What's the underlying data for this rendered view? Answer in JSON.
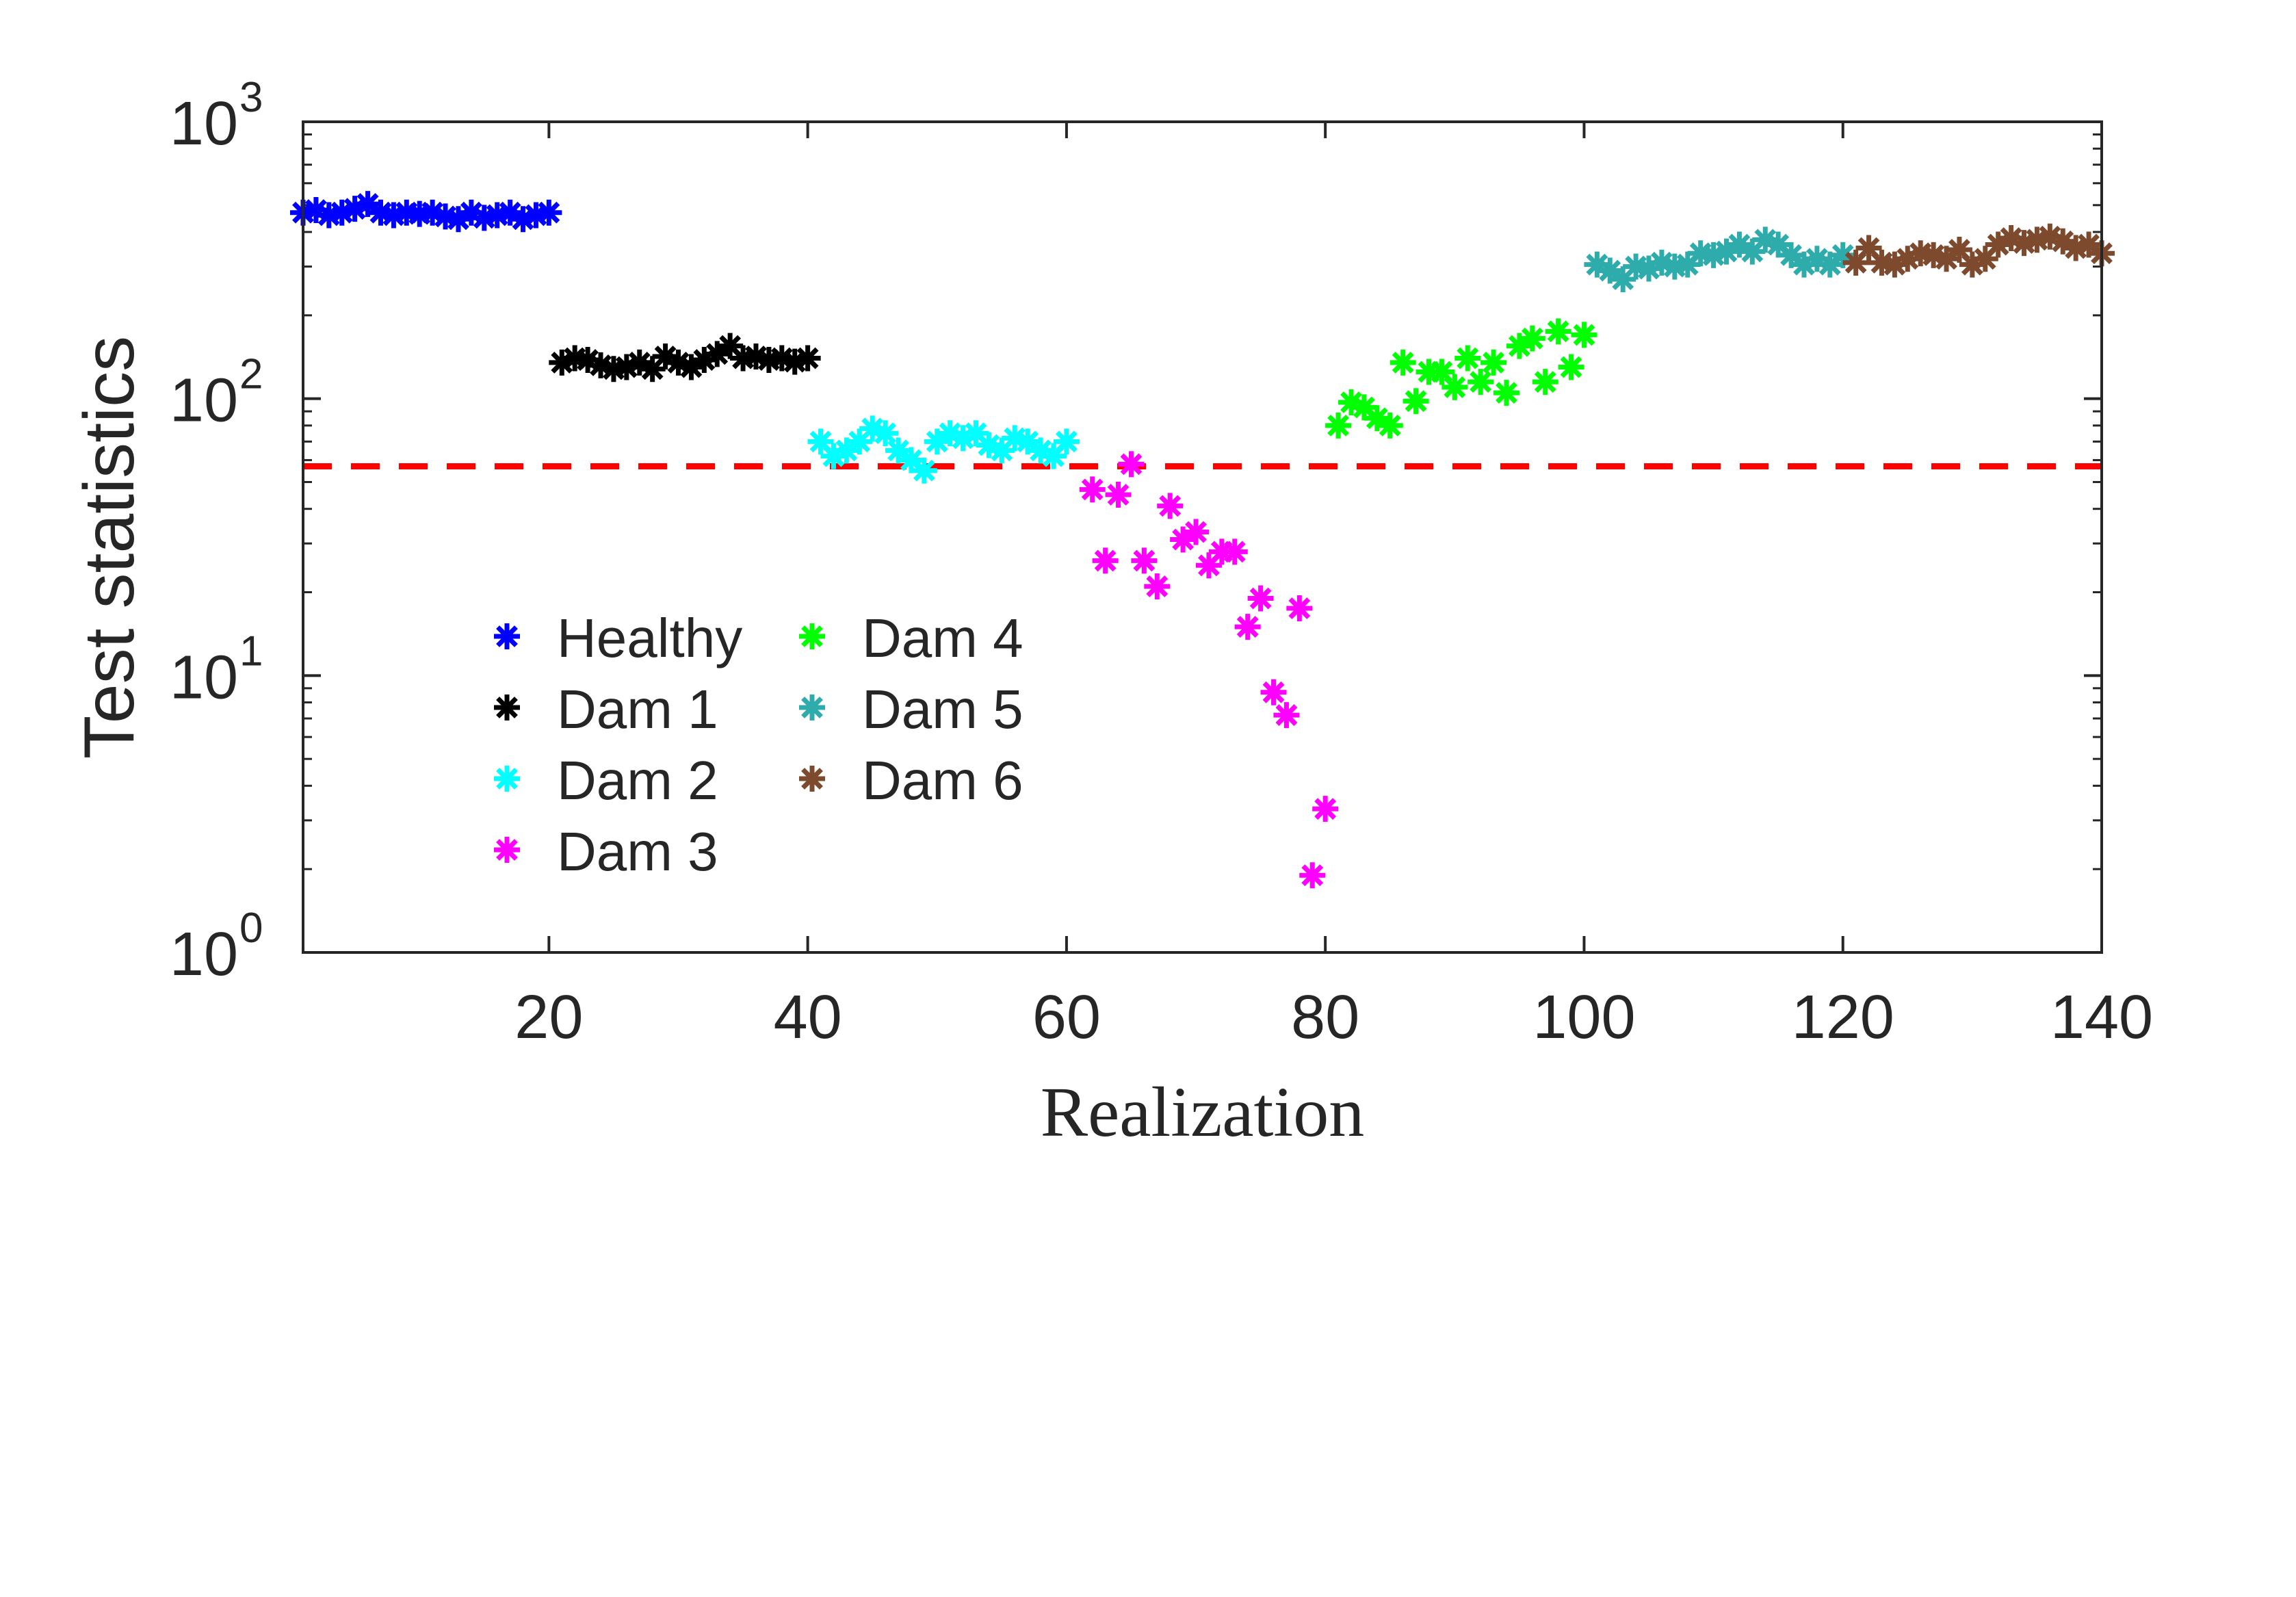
{
  "chart_data": {
    "type": "scatter",
    "title": "",
    "xlabel": "Realization",
    "ylabel": "Test statistics",
    "xlim": [
      1,
      140
    ],
    "ylim": [
      1,
      1000
    ],
    "yscale": "log",
    "xticks": [
      20,
      40,
      60,
      80,
      100,
      120,
      140
    ],
    "xtick_labels": [
      "20",
      "40",
      "60",
      "80",
      "100",
      "120",
      "140"
    ],
    "yticks": [
      1,
      10,
      100,
      1000
    ],
    "ytick_labels": [
      {
        "base": "10",
        "exp": "0"
      },
      {
        "base": "10",
        "exp": "1"
      },
      {
        "base": "10",
        "exp": "2"
      },
      {
        "base": "10",
        "exp": "3"
      }
    ],
    "threshold": {
      "value": 57,
      "style": "dashed",
      "color": "#ff0000"
    },
    "legend": {
      "placement": "lower-left",
      "columns": 2
    },
    "marker": "asterisk",
    "series": [
      {
        "name": "Healthy",
        "color": "#0000ff",
        "x_start": 1,
        "values": [
          470,
          480,
          460,
          470,
          485,
          505,
          470,
          460,
          470,
          465,
          470,
          455,
          445,
          470,
          450,
          460,
          470,
          445,
          460,
          470
        ]
      },
      {
        "name": "Dam 1",
        "color": "#000000",
        "x_start": 21,
        "values": [
          135,
          140,
          138,
          132,
          128,
          130,
          135,
          128,
          142,
          135,
          130,
          138,
          145,
          155,
          140,
          142,
          138,
          140,
          136,
          140
        ]
      },
      {
        "name": "Dam 2",
        "color": "#00ffff",
        "x_start": 41,
        "values": [
          70,
          62,
          65,
          70,
          78,
          75,
          65,
          60,
          55,
          70,
          75,
          72,
          75,
          68,
          65,
          72,
          70,
          65,
          62,
          70
        ]
      },
      {
        "name": "Dam 3",
        "color": "#ff00ff",
        "x_start": 61,
        "values": [
          null,
          47,
          26,
          45,
          58,
          26,
          21,
          41,
          31,
          33,
          25,
          28,
          28,
          15,
          19,
          8.7,
          7.2,
          17.5,
          1.9,
          3.3
        ]
      },
      {
        "name": "Dam 4",
        "color": "#00ff00",
        "x_start": 81,
        "values": [
          80,
          97,
          93,
          85,
          80,
          135,
          98,
          125,
          125,
          110,
          140,
          115,
          135,
          105,
          155,
          165,
          115,
          175,
          130,
          170
        ]
      },
      {
        "name": "Dam 5",
        "color": "#2eacac",
        "x_start": 101,
        "values": [
          305,
          290,
          270,
          300,
          295,
          310,
          300,
          305,
          335,
          330,
          340,
          360,
          340,
          375,
          360,
          330,
          305,
          320,
          305,
          330
        ]
      },
      {
        "name": "Dam 6",
        "color": "#7e4a2e",
        "x_start": 121,
        "values": [
          310,
          350,
          310,
          305,
          320,
          335,
          330,
          320,
          345,
          305,
          320,
          360,
          380,
          365,
          375,
          385,
          370,
          350,
          360,
          335
        ]
      }
    ]
  }
}
